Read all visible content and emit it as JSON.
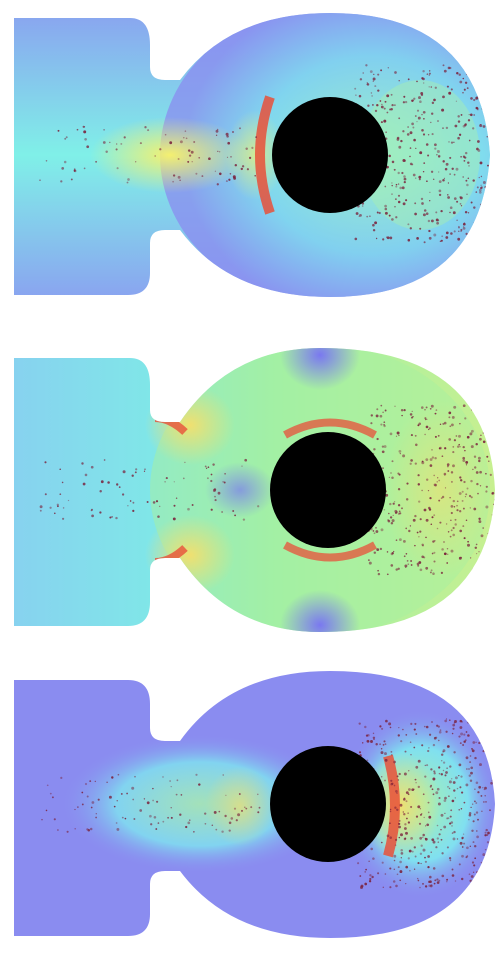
{
  "figure": {
    "panel_count": 3,
    "panels": [
      {
        "id": "panel-1",
        "field": "cyan-dominant",
        "wake_particles": "dense"
      },
      {
        "id": "panel-2",
        "field": "green-dominant",
        "wake_particles": "dense"
      },
      {
        "id": "panel-3",
        "field": "blue-dominant",
        "wake_particles": "dense"
      }
    ],
    "colors": {
      "obstacle": "#000000",
      "low_field": "#8a8cf0",
      "mid_field": "#7be8e8",
      "high_field": "#f0e070",
      "hot_rim": "#e8503a",
      "particle": "#7a1f3a"
    }
  }
}
